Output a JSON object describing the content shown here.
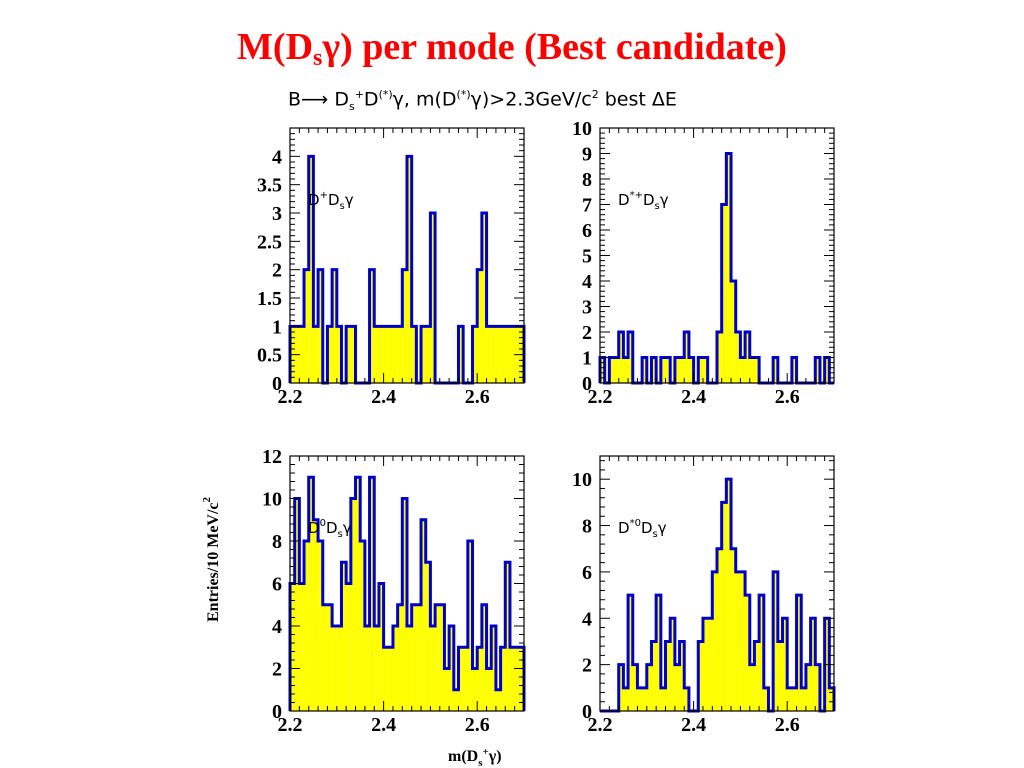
{
  "slide": {
    "title_prefix": "M(D",
    "title_sub": "s",
    "title_suffix": "γ) per mode (Best candidate)"
  },
  "figure_title": {
    "p1": "B",
    "arrow": "⟶",
    "p2": " D",
    "p2_sub": "s",
    "p2_sup": "+",
    "p3": "D",
    "p3_sup": "(*)",
    "p4": "γ, m(D",
    "p4_sup": "(*)",
    "p5": "γ)>2.3GeV/c",
    "p5_sup": "2",
    "p6": " best ΔE"
  },
  "colors": {
    "fill": "#ffff00",
    "line": "#0000cc",
    "title": "#ff0000"
  },
  "x_axis_title": {
    "text": "m(D",
    "sub": "s",
    "sup": "+",
    "suffix": "γ)"
  },
  "y_axis_title": {
    "text": "Entries/10 MeV/c",
    "sup": "2"
  },
  "chart_data": [
    {
      "type": "bar",
      "panel": "top-left",
      "label": "D",
      "label_sup": "+",
      "label_rest": "D",
      "label_sub": "s",
      "label_end": "γ",
      "xlim": [
        2.2,
        2.7
      ],
      "ylim": [
        0,
        4.5
      ],
      "xticks": [
        "2.2",
        "2.4",
        "2.6"
      ],
      "yticks": [
        "0",
        "0.5",
        "1",
        "1.5",
        "2",
        "2.5",
        "3",
        "3.5",
        "4"
      ],
      "x": [
        2.2,
        2.21,
        2.22,
        2.23,
        2.24,
        2.25,
        2.26,
        2.27,
        2.28,
        2.29,
        2.3,
        2.31,
        2.32,
        2.33,
        2.34,
        2.35,
        2.36,
        2.37,
        2.38,
        2.39,
        2.4,
        2.41,
        2.42,
        2.43,
        2.44,
        2.45,
        2.46,
        2.47,
        2.48,
        2.49,
        2.5,
        2.51,
        2.52,
        2.53,
        2.54,
        2.55,
        2.56,
        2.57,
        2.58,
        2.59,
        2.6,
        2.61,
        2.62,
        2.63,
        2.64,
        2.65,
        2.66,
        2.67,
        2.68,
        2.69
      ],
      "values": [
        1,
        1,
        1,
        2,
        4,
        1,
        2,
        0,
        1,
        2,
        1,
        0,
        1,
        1,
        0,
        0,
        0,
        2,
        1,
        1,
        1,
        1,
        1,
        1,
        2,
        4,
        1,
        0,
        1,
        1,
        3,
        0,
        0,
        0,
        0,
        0,
        1,
        0,
        0,
        1,
        2,
        3,
        1,
        1,
        1,
        1,
        1,
        1,
        1,
        1
      ]
    },
    {
      "type": "bar",
      "panel": "top-right",
      "label": "D",
      "label_sup": "*+",
      "label_rest": "D",
      "label_sub": "s",
      "label_end": "γ",
      "xlim": [
        2.2,
        2.7
      ],
      "ylim": [
        0,
        10
      ],
      "xticks": [
        "2.2",
        "2.4",
        "2.6"
      ],
      "yticks": [
        "0",
        "1",
        "2",
        "3",
        "4",
        "5",
        "6",
        "7",
        "8",
        "9",
        "10"
      ],
      "x": [
        2.2,
        2.21,
        2.22,
        2.23,
        2.24,
        2.25,
        2.26,
        2.27,
        2.28,
        2.29,
        2.3,
        2.31,
        2.32,
        2.33,
        2.34,
        2.35,
        2.36,
        2.37,
        2.38,
        2.39,
        2.4,
        2.41,
        2.42,
        2.43,
        2.44,
        2.45,
        2.46,
        2.47,
        2.48,
        2.49,
        2.5,
        2.51,
        2.52,
        2.53,
        2.54,
        2.55,
        2.56,
        2.57,
        2.58,
        2.59,
        2.6,
        2.61,
        2.62,
        2.63,
        2.64,
        2.65,
        2.66,
        2.67,
        2.68,
        2.69
      ],
      "values": [
        1,
        0,
        1,
        1,
        2,
        1,
        2,
        0,
        0,
        1,
        0,
        1,
        0,
        1,
        1,
        0,
        1,
        1,
        2,
        1,
        0,
        1,
        1,
        0,
        0,
        2,
        7,
        9,
        4,
        2,
        1,
        2,
        1,
        1,
        0,
        0,
        0,
        1,
        0,
        0,
        0,
        1,
        0,
        0,
        0,
        0,
        1,
        0,
        1,
        0
      ]
    },
    {
      "type": "bar",
      "panel": "bottom-left",
      "label": "D",
      "label_sup": "0",
      "label_rest": "D",
      "label_sub": "s",
      "label_end": "γ",
      "xlim": [
        2.2,
        2.7
      ],
      "ylim": [
        0,
        12
      ],
      "xticks": [
        "2.2",
        "2.4",
        "2.6"
      ],
      "yticks": [
        "0",
        "2",
        "4",
        "6",
        "8",
        "10",
        "12"
      ],
      "x": [
        2.2,
        2.21,
        2.22,
        2.23,
        2.24,
        2.25,
        2.26,
        2.27,
        2.28,
        2.29,
        2.3,
        2.31,
        2.32,
        2.33,
        2.34,
        2.35,
        2.36,
        2.37,
        2.38,
        2.39,
        2.4,
        2.41,
        2.42,
        2.43,
        2.44,
        2.45,
        2.46,
        2.47,
        2.48,
        2.49,
        2.5,
        2.51,
        2.52,
        2.53,
        2.54,
        2.55,
        2.56,
        2.57,
        2.58,
        2.59,
        2.6,
        2.61,
        2.62,
        2.63,
        2.64,
        2.65,
        2.66,
        2.67,
        2.68,
        2.69
      ],
      "values": [
        6,
        10,
        6,
        8,
        11,
        9,
        8,
        5,
        5,
        4,
        4,
        7,
        6,
        10,
        11,
        8,
        4,
        11,
        4,
        6,
        3,
        3,
        4,
        5,
        10,
        4,
        5,
        5,
        9,
        7,
        4,
        5,
        5,
        2,
        4,
        1,
        3,
        3,
        8,
        2,
        3,
        5,
        2,
        4,
        1,
        3,
        7,
        3,
        3,
        3
      ]
    },
    {
      "type": "bar",
      "panel": "bottom-right",
      "label": "D",
      "label_sup": "*0",
      "label_rest": "D",
      "label_sub": "s",
      "label_end": "γ",
      "xlim": [
        2.2,
        2.7
      ],
      "ylim": [
        0,
        11
      ],
      "xticks": [
        "2.2",
        "2.4",
        "2.6"
      ],
      "yticks": [
        "0",
        "2",
        "4",
        "6",
        "8",
        "10"
      ],
      "x": [
        2.2,
        2.21,
        2.22,
        2.23,
        2.24,
        2.25,
        2.26,
        2.27,
        2.28,
        2.29,
        2.3,
        2.31,
        2.32,
        2.33,
        2.34,
        2.35,
        2.36,
        2.37,
        2.38,
        2.39,
        2.4,
        2.41,
        2.42,
        2.43,
        2.44,
        2.45,
        2.46,
        2.47,
        2.48,
        2.49,
        2.5,
        2.51,
        2.52,
        2.53,
        2.54,
        2.55,
        2.56,
        2.57,
        2.58,
        2.59,
        2.6,
        2.61,
        2.62,
        2.63,
        2.64,
        2.65,
        2.66,
        2.67,
        2.68,
        2.69
      ],
      "values": [
        0,
        0,
        0,
        0,
        2,
        1,
        5,
        2,
        1,
        1,
        2,
        3,
        5,
        1,
        3,
        4,
        2,
        3,
        1,
        0,
        0,
        3,
        4,
        4,
        6,
        7,
        9,
        10,
        7,
        6,
        6,
        5,
        2,
        3,
        5,
        1,
        0,
        6,
        3,
        4,
        1,
        1,
        5,
        1,
        2,
        4,
        2,
        0,
        4,
        1
      ]
    }
  ]
}
